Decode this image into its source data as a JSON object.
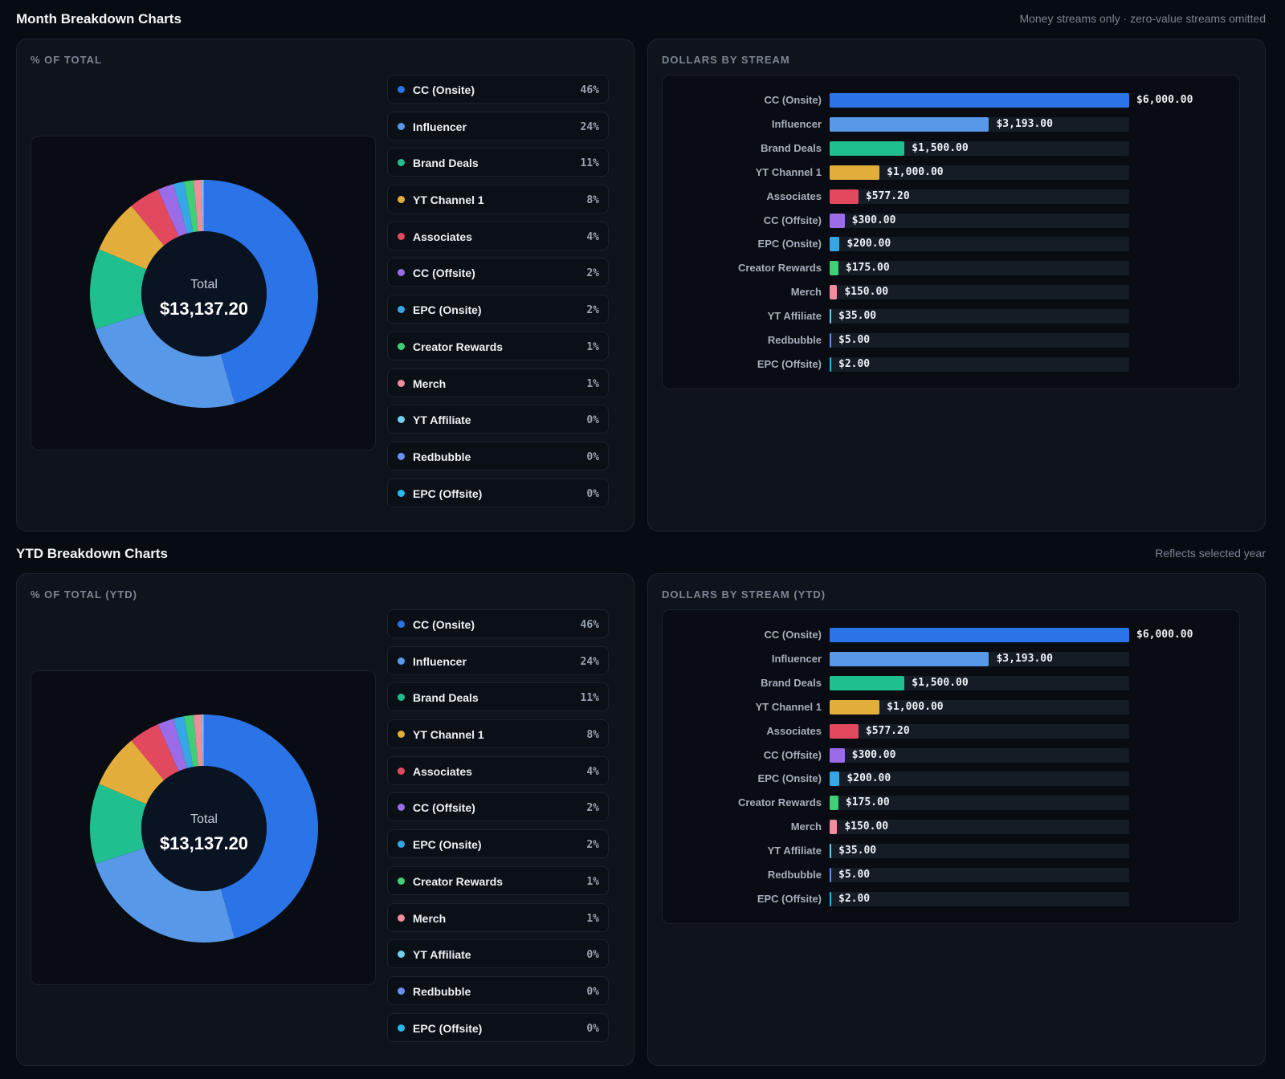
{
  "month": {
    "title": "Month Breakdown Charts",
    "note": "Money streams only · zero-value streams omitted",
    "pie_label": "% OF TOTAL",
    "bar_label": "DOLLARS BY STREAM",
    "total_label": "Total",
    "total_value": "$13,137.20"
  },
  "ytd": {
    "title": "YTD Breakdown Charts",
    "note": "Reflects selected year",
    "pie_label": "% OF TOTAL (YTD)",
    "bar_label": "DOLLARS BY STREAM (YTD)",
    "total_label": "Total",
    "total_value": "$13,137.20"
  },
  "streams": [
    {
      "name": "CC (Onsite)",
      "pct": "46%",
      "value": 6000.0,
      "value_label": "$6,000.00",
      "color": "#2a74e8"
    },
    {
      "name": "Influencer",
      "pct": "24%",
      "value": 3193.0,
      "value_label": "$3,193.00",
      "color": "#5799e8"
    },
    {
      "name": "Brand Deals",
      "pct": "11%",
      "value": 1500.0,
      "value_label": "$1,500.00",
      "color": "#1fbf8f"
    },
    {
      "name": "YT Channel 1",
      "pct": "8%",
      "value": 1000.0,
      "value_label": "$1,000.00",
      "color": "#e2ad3b"
    },
    {
      "name": "Associates",
      "pct": "4%",
      "value": 577.2,
      "value_label": "$577.20",
      "color": "#e2495f"
    },
    {
      "name": "CC (Offsite)",
      "pct": "2%",
      "value": 300.0,
      "value_label": "$300.00",
      "color": "#9b6ce8"
    },
    {
      "name": "EPC (Onsite)",
      "pct": "2%",
      "value": 200.0,
      "value_label": "$200.00",
      "color": "#36a7e6"
    },
    {
      "name": "Creator Rewards",
      "pct": "1%",
      "value": 175.0,
      "value_label": "$175.00",
      "color": "#3fcf76"
    },
    {
      "name": "Merch",
      "pct": "1%",
      "value": 150.0,
      "value_label": "$150.00",
      "color": "#f28c9c"
    },
    {
      "name": "YT Affiliate",
      "pct": "0%",
      "value": 35.0,
      "value_label": "$35.00",
      "color": "#6fd0ee"
    },
    {
      "name": "Redbubble",
      "pct": "0%",
      "value": 5.0,
      "value_label": "$5.00",
      "color": "#6b8ef0"
    },
    {
      "name": "EPC (Offsite)",
      "pct": "0%",
      "value": 2.0,
      "value_label": "$2.00",
      "color": "#26b8f0"
    }
  ],
  "chart_data": [
    {
      "type": "pie",
      "title": "% OF TOTAL",
      "categories": [
        "CC (Onsite)",
        "Influencer",
        "Brand Deals",
        "YT Channel 1",
        "Associates",
        "CC (Offsite)",
        "EPC (Onsite)",
        "Creator Rewards",
        "Merch",
        "YT Affiliate",
        "Redbubble",
        "EPC (Offsite)"
      ],
      "values": [
        46,
        24,
        11,
        8,
        4,
        2,
        2,
        1,
        1,
        0,
        0,
        0
      ],
      "legend": "right"
    },
    {
      "type": "bar",
      "title": "DOLLARS BY STREAM",
      "orientation": "horizontal",
      "categories": [
        "CC (Onsite)",
        "Influencer",
        "Brand Deals",
        "YT Channel 1",
        "Associates",
        "CC (Offsite)",
        "EPC (Onsite)",
        "Creator Rewards",
        "Merch",
        "YT Affiliate",
        "Redbubble",
        "EPC (Offsite)"
      ],
      "values": [
        6000.0,
        3193.0,
        1500.0,
        1000.0,
        577.2,
        300.0,
        200.0,
        175.0,
        150.0,
        35.0,
        5.0,
        2.0
      ],
      "xlim": [
        0,
        6000
      ]
    },
    {
      "type": "pie",
      "title": "% OF TOTAL (YTD)",
      "categories": [
        "CC (Onsite)",
        "Influencer",
        "Brand Deals",
        "YT Channel 1",
        "Associates",
        "CC (Offsite)",
        "EPC (Onsite)",
        "Creator Rewards",
        "Merch",
        "YT Affiliate",
        "Redbubble",
        "EPC (Offsite)"
      ],
      "values": [
        46,
        24,
        11,
        8,
        4,
        2,
        2,
        1,
        1,
        0,
        0,
        0
      ],
      "legend": "right"
    },
    {
      "type": "bar",
      "title": "DOLLARS BY STREAM (YTD)",
      "orientation": "horizontal",
      "categories": [
        "CC (Onsite)",
        "Influencer",
        "Brand Deals",
        "YT Channel 1",
        "Associates",
        "CC (Offsite)",
        "EPC (Onsite)",
        "Creator Rewards",
        "Merch",
        "YT Affiliate",
        "Redbubble",
        "EPC (Offsite)"
      ],
      "values": [
        6000.0,
        3193.0,
        1500.0,
        1000.0,
        577.2,
        300.0,
        200.0,
        175.0,
        150.0,
        35.0,
        5.0,
        2.0
      ],
      "xlim": [
        0,
        6000
      ]
    }
  ]
}
